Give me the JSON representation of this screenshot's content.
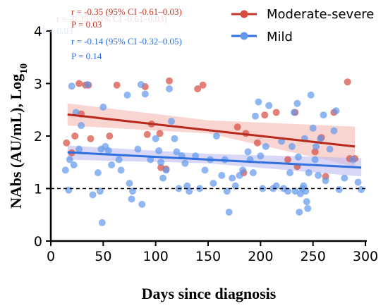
{
  "chart_data": {
    "type": "scatter",
    "xlabel": "Days since diagnosis",
    "ylabel_main": "NAbs (AU/mL), Log",
    "ylabel_sub": "10",
    "xlim": [
      0,
      300
    ],
    "ylim": [
      0,
      4
    ],
    "x_ticks": [
      "0",
      "50",
      "100",
      "150",
      "200",
      "250",
      "300"
    ],
    "y_ticks": [
      "0",
      "1",
      "2",
      "3",
      "4"
    ],
    "reference_line_y": 1,
    "grid": false,
    "legend_position": "top-right",
    "series": [
      {
        "name": "Moderate-severe",
        "color": "#d64a3f",
        "band_color": "#f4b3ad",
        "stat_r": "r = -0.35 (95% CI -0.61–0.03)",
        "stat_p": "P = 0.03",
        "fit": {
          "x": [
            16,
            290
          ],
          "y": [
            2.41,
            1.8
          ]
        },
        "ci_upper": [
          [
            16,
            2.62
          ],
          [
            150,
            2.3
          ],
          [
            290,
            2.18
          ]
        ],
        "ci_lower": [
          [
            16,
            2.2
          ],
          [
            150,
            2.05
          ],
          [
            290,
            1.42
          ]
        ],
        "points": [
          [
            15,
            1.87
          ],
          [
            20,
            1.68
          ],
          [
            23,
            2.0
          ],
          [
            27,
            3.0
          ],
          [
            29,
            2.42
          ],
          [
            33,
            2.97
          ],
          [
            36,
            2.97
          ],
          [
            38,
            1.95
          ],
          [
            56,
            2.0
          ],
          [
            63,
            2.97
          ],
          [
            90,
            2.94
          ],
          [
            92,
            2.03
          ],
          [
            96,
            2.23
          ],
          [
            104,
            2.05
          ],
          [
            105,
            1.4
          ],
          [
            110,
            1.37
          ],
          [
            113,
            3.05
          ],
          [
            140,
            2.9
          ],
          [
            145,
            2.97
          ],
          [
            178,
            2.17
          ],
          [
            186,
            2.05
          ],
          [
            184,
            1.3
          ],
          [
            197,
            1.87
          ],
          [
            204,
            2.4
          ],
          [
            215,
            2.45
          ],
          [
            226,
            1.55
          ],
          [
            233,
            2.45
          ],
          [
            235,
            1.42
          ],
          [
            252,
            1.7
          ],
          [
            258,
            1.97
          ],
          [
            262,
            1.23
          ],
          [
            270,
            2.45
          ],
          [
            283,
            3.03
          ],
          [
            285,
            1.57
          ],
          [
            290,
            1.57
          ]
        ]
      },
      {
        "name": "Mild",
        "color": "#6199ec",
        "band_color": "#b8b8ef",
        "stat_r": "r = -0.14 (95% CI -0.32–0.05)",
        "stat_p": "P = 0.14",
        "fit": {
          "x": [
            16,
            296
          ],
          "y": [
            1.69,
            1.4
          ]
        },
        "ci_upper": [
          [
            16,
            1.82
          ],
          [
            150,
            1.66
          ],
          [
            296,
            1.58
          ]
        ],
        "ci_lower": [
          [
            16,
            1.55
          ],
          [
            150,
            1.48
          ],
          [
            296,
            1.23
          ]
        ],
        "points": [
          [
            14,
            1.35
          ],
          [
            17,
            0.97
          ],
          [
            18,
            1.55
          ],
          [
            20,
            2.95
          ],
          [
            22,
            1.45
          ],
          [
            24,
            2.45
          ],
          [
            27,
            1.75
          ],
          [
            29,
            2.2
          ],
          [
            35,
            2.98
          ],
          [
            40,
            0.88
          ],
          [
            45,
            1.3
          ],
          [
            47,
            0.95
          ],
          [
            48,
            1.75
          ],
          [
            49,
            0.35
          ],
          [
            50,
            2.55
          ],
          [
            52,
            1.8
          ],
          [
            55,
            1.72
          ],
          [
            58,
            1.45
          ],
          [
            65,
            1.55
          ],
          [
            67,
            1.35
          ],
          [
            73,
            2.78
          ],
          [
            75,
            1.1
          ],
          [
            77,
            0.8
          ],
          [
            78,
            0.95
          ],
          [
            83,
            1.75
          ],
          [
            86,
            2.98
          ],
          [
            87,
            0.7
          ],
          [
            90,
            2.8
          ],
          [
            95,
            1.55
          ],
          [
            100,
            1.95
          ],
          [
            103,
            1.72
          ],
          [
            105,
            1.5
          ],
          [
            107,
            1.2
          ],
          [
            110,
            1.35
          ],
          [
            113,
            2.9
          ],
          [
            115,
            2.28
          ],
          [
            118,
            1.95
          ],
          [
            120,
            1.7
          ],
          [
            122,
            1.0
          ],
          [
            125,
            1.62
          ],
          [
            128,
            1.48
          ],
          [
            130,
            1.05
          ],
          [
            132,
            0.95
          ],
          [
            138,
            1.62
          ],
          [
            142,
            1.0
          ],
          [
            147,
            1.35
          ],
          [
            152,
            1.55
          ],
          [
            155,
            1.1
          ],
          [
            158,
            2.0
          ],
          [
            163,
            1.25
          ],
          [
            166,
            1.55
          ],
          [
            168,
            0.95
          ],
          [
            170,
            0.55
          ],
          [
            173,
            1.2
          ],
          [
            176,
            1.05
          ],
          [
            180,
            1.25
          ],
          [
            183,
            1.35
          ],
          [
            188,
            1.7
          ],
          [
            190,
            1.55
          ],
          [
            193,
            1.3
          ],
          [
            195,
            2.38
          ],
          [
            198,
            2.65
          ],
          [
            200,
            1.62
          ],
          [
            202,
            1.0
          ],
          [
            205,
            1.8
          ],
          [
            208,
            2.58
          ],
          [
            212,
            1.0
          ],
          [
            215,
            1.05
          ],
          [
            220,
            1.9
          ],
          [
            222,
            1.0
          ],
          [
            226,
            0.95
          ],
          [
            228,
            1.3
          ],
          [
            230,
            1.8
          ],
          [
            232,
            2.45
          ],
          [
            233,
            0.95
          ],
          [
            235,
            2.62
          ],
          [
            236,
            1.6
          ],
          [
            237,
            0.55
          ],
          [
            238,
            0.9
          ],
          [
            240,
            1.0
          ],
          [
            241,
            1.05
          ],
          [
            242,
            1.95
          ],
          [
            243,
            0.95
          ],
          [
            244,
            0.75
          ],
          [
            245,
            0.62
          ],
          [
            246,
            1.3
          ],
          [
            248,
            2.78
          ],
          [
            250,
            2.15
          ],
          [
            252,
            1.55
          ],
          [
            253,
            1.8
          ],
          [
            255,
            1.25
          ],
          [
            257,
            1.95
          ],
          [
            260,
            2.4
          ],
          [
            262,
            1.15
          ],
          [
            266,
            1.75
          ],
          [
            270,
            2.1
          ],
          [
            272,
            2.48
          ],
          [
            275,
            0.98
          ],
          [
            280,
            1.2
          ],
          [
            288,
            1.55
          ],
          [
            293,
            1.12
          ],
          [
            296,
            0.98
          ]
        ]
      }
    ],
    "ghost_texts": [
      "r = -0.35 (95% CI -0.61–0.03)",
      "P = 0.03"
    ]
  }
}
